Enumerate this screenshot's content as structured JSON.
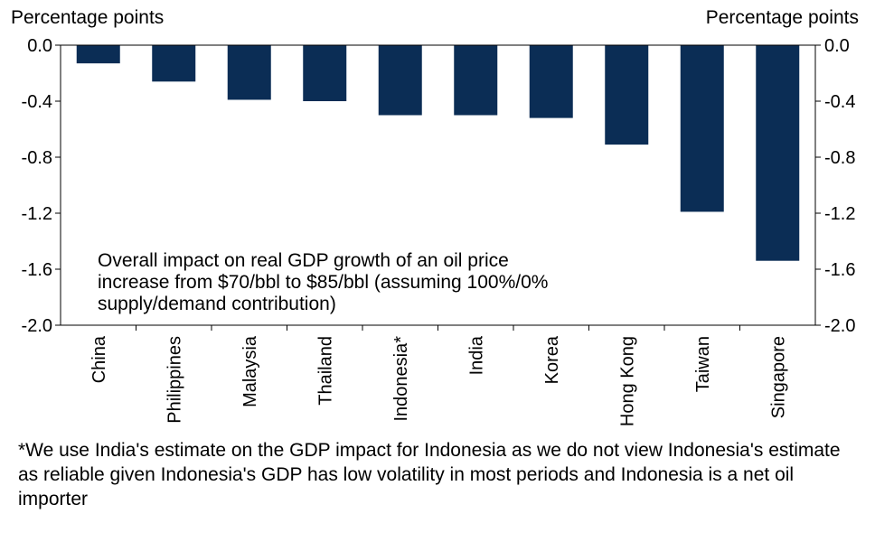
{
  "chart_data": {
    "type": "bar",
    "ylabel_left": "Percentage points",
    "ylabel_right": "Percentage points",
    "categories": [
      "China",
      "Philippines",
      "Malaysia",
      "Thailand",
      "Indonesia*",
      "India",
      "Korea",
      "Hong Kong",
      "Taiwan",
      "Singapore"
    ],
    "values": [
      -0.13,
      -0.26,
      -0.39,
      -0.4,
      -0.5,
      -0.5,
      -0.52,
      -0.71,
      -1.19,
      -1.54
    ],
    "ylim": [
      -2.0,
      0.0
    ],
    "yticks": [
      0.0,
      -0.4,
      -0.8,
      -1.2,
      -1.6,
      -2.0
    ],
    "ytick_labels": [
      "0.0",
      "-0.4",
      "-0.8",
      "-1.2",
      "-1.6",
      "-2.0"
    ],
    "annotation": [
      "Overall  impact  on  real  GDP  growth  of  an  oil  price",
      "increase  from  $70/bbl  to  $85/bbl  (assuming  100%/0%",
      "supply/demand  contribution)"
    ],
    "bar_color": "#0b2d55",
    "grid": false
  },
  "footnote": "*We use India's estimate on the GDP impact for Indonesia as we do not view Indonesia's estimate as reliable given Indonesia's GDP has low volatility in most periods and Indonesia is a net oil importer"
}
